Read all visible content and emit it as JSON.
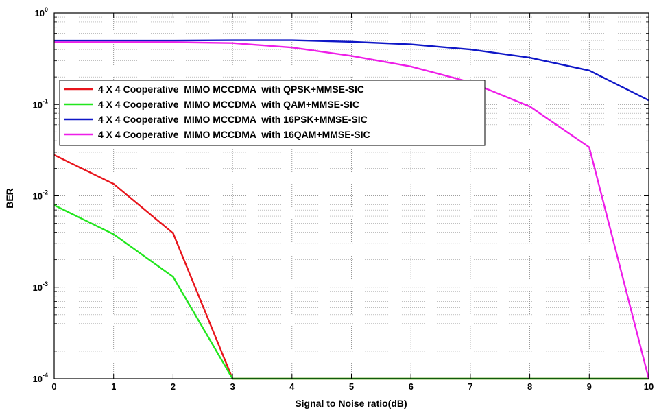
{
  "chart_data": {
    "type": "line",
    "x_scale": "linear",
    "y_scale": "log",
    "xlim": [
      0,
      10
    ],
    "ylim": [
      0.0001,
      1
    ],
    "xlabel": "Signal to Noise ratio(dB)",
    "ylabel": "BER",
    "grid": true,
    "legend_position": "upper-left",
    "x_ticks": [
      "0",
      "1",
      "2",
      "3",
      "4",
      "5",
      "6",
      "7",
      "8",
      "9",
      "10"
    ],
    "y_ticks": [
      {
        "value": 0.0001,
        "base": "10",
        "exp": "-4"
      },
      {
        "value": 0.001,
        "base": "10",
        "exp": "-3"
      },
      {
        "value": 0.01,
        "base": "10",
        "exp": "-2"
      },
      {
        "value": 0.1,
        "base": "10",
        "exp": "-1"
      },
      {
        "value": 1,
        "base": "10",
        "exp": "0"
      }
    ],
    "series": [
      {
        "name": "4 X 4 Cooperative  MIMO MCCDMA  with QPSK+MMSE-SIC",
        "color": "#e8141b",
        "x": [
          0,
          1,
          2,
          3,
          4,
          5,
          6,
          7,
          8,
          9,
          10
        ],
        "y": [
          0.028,
          0.0135,
          0.0039,
          0.0001,
          0.0001,
          0.0001,
          0.0001,
          0.0001,
          0.0001,
          0.0001,
          0.0001
        ]
      },
      {
        "name": "4 X 4 Cooperative  MIMO MCCDMA  with QAM+MMSE-SIC",
        "color": "#22e61e",
        "x": [
          0,
          1,
          2,
          3,
          4,
          5,
          6,
          7,
          8,
          9,
          10
        ],
        "y": [
          0.0079,
          0.0038,
          0.0013,
          0.0001,
          0.0001,
          0.0001,
          0.0001,
          0.0001,
          0.0001,
          0.0001,
          0.0001
        ]
      },
      {
        "name": "4 X 4 Cooperative  MIMO MCCDMA  with 16PSK+MMSE-SIC",
        "color": "#0f17c7",
        "x": [
          0,
          1,
          2,
          3,
          4,
          5,
          6,
          7,
          8,
          9,
          10
        ],
        "y": [
          0.5,
          0.5,
          0.5,
          0.505,
          0.505,
          0.485,
          0.455,
          0.4,
          0.325,
          0.235,
          0.111
        ]
      },
      {
        "name": "4 X 4 Cooperative  MIMO MCCDMA  with 16QAM+MMSE-SIC",
        "color": "#ee1ee8",
        "x": [
          0,
          1,
          2,
          3,
          4,
          5,
          6,
          7,
          8,
          9,
          10
        ],
        "y": [
          0.48,
          0.48,
          0.48,
          0.47,
          0.42,
          0.34,
          0.26,
          0.175,
          0.095,
          0.034,
          0.0001
        ]
      }
    ]
  }
}
